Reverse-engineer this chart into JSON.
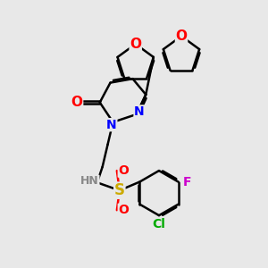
{
  "bg_color": "#e8e8e8",
  "atom_colors": {
    "O": "#ff0000",
    "N": "#0000ff",
    "S": "#ccaa00",
    "Cl": "#00aa00",
    "F": "#cc00cc",
    "H": "#888888",
    "C": "#000000"
  },
  "bond_color": "#000000",
  "bond_width": 1.8,
  "font_size": 10,
  "fig_size": [
    3.0,
    3.0
  ],
  "dpi": 100
}
